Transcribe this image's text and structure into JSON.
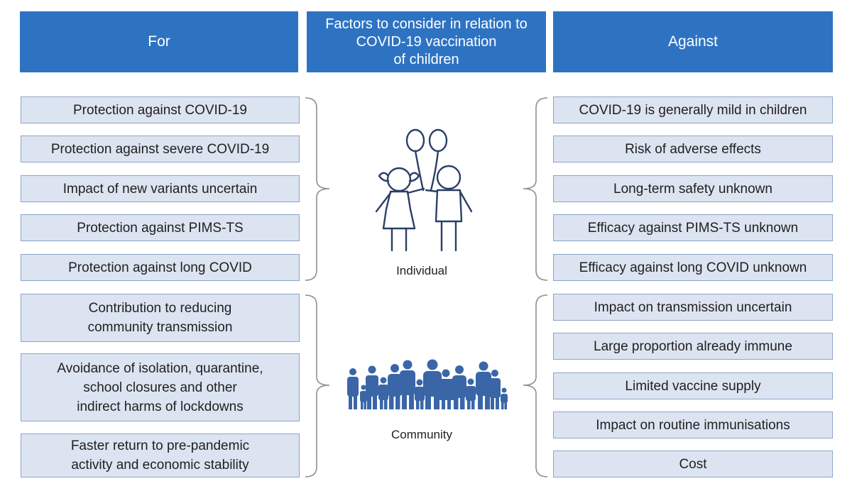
{
  "header": {
    "for_label": "For",
    "middle_title": "Factors to consider in relation to\nCOVID-19 vaccination\nof children",
    "against_label": "Against"
  },
  "for_individual": [
    "Protection against COVID-19",
    "Protection against severe COVID-19",
    "Impact of new variants uncertain",
    "Protection against PIMS-TS",
    "Protection against long COVID"
  ],
  "for_community": [
    "Contribution to reducing\ncommunity transmission",
    "Avoidance of isolation, quarantine,\nschool closures and other\nindirect harms of lockdowns",
    "Faster return to pre-pandemic\nactivity and economic stability"
  ],
  "against_individual": [
    "COVID-19 is generally mild in children",
    "Risk of adverse effects",
    "Long-term safety unknown",
    "Efficacy against PIMS-TS unknown",
    "Efficacy against long COVID unknown"
  ],
  "against_community": [
    "Impact on transmission uncertain",
    "Large proportion already immune",
    "Limited vaccine supply",
    "Impact on routine immunisations",
    "Cost"
  ],
  "labels": {
    "individual": "Individual",
    "community": "Community"
  },
  "colors": {
    "header_bg": "#2e73c2",
    "box_bg": "#dde4f1",
    "box_border": "#8da3c7",
    "icon_blue": "#3a66a8",
    "icon_stroke": "#2b3f66"
  },
  "icons": [
    "children-with-balloons-icon",
    "community-crowd-icon"
  ]
}
